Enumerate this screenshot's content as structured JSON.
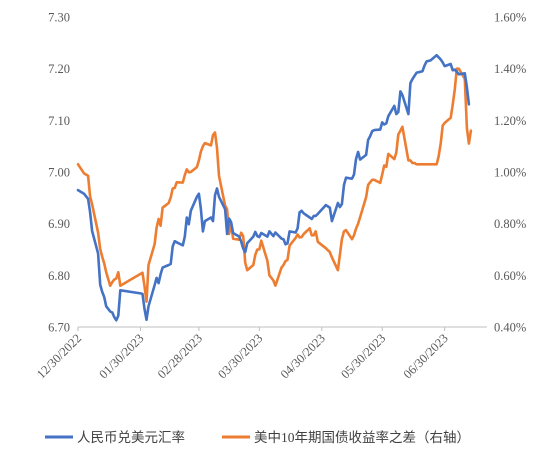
{
  "chart_data": {
    "type": "line",
    "x_axis": {
      "start": "2022-12-30",
      "end": "2023-07-21",
      "tick_labels": [
        "12/30/2022",
        "01/30/2023",
        "02/28/2023",
        "03/30/2023",
        "04/30/2023",
        "05/30/2023",
        "06/30/2023"
      ],
      "tick_dates": [
        "2022-12-30",
        "2023-01-30",
        "2023-02-28",
        "2023-03-30",
        "2023-04-30",
        "2023-05-30",
        "2023-06-30"
      ]
    },
    "y_left": {
      "min": 6.7,
      "max": 7.3,
      "step": 0.1,
      "tick_labels": [
        "7.30",
        "7.20",
        "7.10",
        "7.00",
        "6.90",
        "6.80",
        "6.70"
      ]
    },
    "y_right": {
      "min": 0.4,
      "max": 1.6,
      "step": 0.2,
      "unit": "%",
      "tick_labels": [
        "1.60%",
        "1.40%",
        "1.20%",
        "1.00%",
        "0.80%",
        "0.60%",
        "0.40%"
      ]
    },
    "grid": false,
    "legend_position": "bottom",
    "series": [
      {
        "name": "人民币兑美元汇率",
        "axis": "left",
        "color": "#4472C4",
        "points": [
          [
            "2022-12-30",
            6.965
          ],
          [
            "2023-01-02",
            6.958
          ],
          [
            "2023-01-04",
            6.948
          ],
          [
            "2023-01-05",
            6.922
          ],
          [
            "2023-01-06",
            6.886
          ],
          [
            "2023-01-09",
            6.842
          ],
          [
            "2023-01-10",
            6.782
          ],
          [
            "2023-01-11",
            6.768
          ],
          [
            "2023-01-12",
            6.758
          ],
          [
            "2023-01-13",
            6.74
          ],
          [
            "2023-01-15",
            6.73
          ],
          [
            "2023-01-16",
            6.728
          ],
          [
            "2023-01-17",
            6.719
          ],
          [
            "2023-01-18",
            6.713
          ],
          [
            "2023-01-19",
            6.722
          ],
          [
            "2023-01-20",
            6.771
          ],
          [
            "2023-01-30",
            6.765
          ],
          [
            "2023-01-31",
            6.764
          ],
          [
            "2023-02-01",
            6.735
          ],
          [
            "2023-02-02",
            6.714
          ],
          [
            "2023-02-03",
            6.74
          ],
          [
            "2023-02-06",
            6.781
          ],
          [
            "2023-02-07",
            6.795
          ],
          [
            "2023-02-08",
            6.785
          ],
          [
            "2023-02-09",
            6.802
          ],
          [
            "2023-02-10",
            6.815
          ],
          [
            "2023-02-13",
            6.82
          ],
          [
            "2023-02-14",
            6.822
          ],
          [
            "2023-02-15",
            6.856
          ],
          [
            "2023-02-16",
            6.866
          ],
          [
            "2023-02-17",
            6.864
          ],
          [
            "2023-02-20",
            6.858
          ],
          [
            "2023-02-21",
            6.875
          ],
          [
            "2023-02-22",
            6.912
          ],
          [
            "2023-02-23",
            6.899
          ],
          [
            "2023-02-24",
            6.925
          ],
          [
            "2023-02-27",
            6.952
          ],
          [
            "2023-02-28",
            6.958
          ],
          [
            "2023-03-01",
            6.928
          ],
          [
            "2023-03-02",
            6.885
          ],
          [
            "2023-03-03",
            6.905
          ],
          [
            "2023-03-06",
            6.912
          ],
          [
            "2023-03-07",
            6.905
          ],
          [
            "2023-03-08",
            6.955
          ],
          [
            "2023-03-09",
            6.968
          ],
          [
            "2023-03-10",
            6.952
          ],
          [
            "2023-03-13",
            6.928
          ],
          [
            "2023-03-14",
            6.88
          ],
          [
            "2023-03-15",
            6.91
          ],
          [
            "2023-03-16",
            6.903
          ],
          [
            "2023-03-17",
            6.882
          ],
          [
            "2023-03-20",
            6.875
          ],
          [
            "2023-03-21",
            6.865
          ],
          [
            "2023-03-22",
            6.852
          ],
          [
            "2023-03-23",
            6.845
          ],
          [
            "2023-03-24",
            6.862
          ],
          [
            "2023-03-27",
            6.875
          ],
          [
            "2023-03-28",
            6.884
          ],
          [
            "2023-03-29",
            6.876
          ],
          [
            "2023-03-30",
            6.874
          ],
          [
            "2023-03-31",
            6.882
          ],
          [
            "2023-04-03",
            6.875
          ],
          [
            "2023-04-04",
            6.885
          ],
          [
            "2023-04-06",
            6.876
          ],
          [
            "2023-04-07",
            6.883
          ],
          [
            "2023-04-10",
            6.871
          ],
          [
            "2023-04-11",
            6.87
          ],
          [
            "2023-04-12",
            6.86
          ],
          [
            "2023-04-13",
            6.862
          ],
          [
            "2023-04-14",
            6.885
          ],
          [
            "2023-04-17",
            6.883
          ],
          [
            "2023-04-18",
            6.891
          ],
          [
            "2023-04-19",
            6.922
          ],
          [
            "2023-04-20",
            6.925
          ],
          [
            "2023-04-21",
            6.92
          ],
          [
            "2023-04-24",
            6.912
          ],
          [
            "2023-04-25",
            6.909
          ],
          [
            "2023-04-26",
            6.915
          ],
          [
            "2023-04-27",
            6.915
          ],
          [
            "2023-04-28",
            6.919
          ],
          [
            "2023-05-02",
            6.936
          ],
          [
            "2023-05-04",
            6.931
          ],
          [
            "2023-05-05",
            6.905
          ],
          [
            "2023-05-08",
            6.94
          ],
          [
            "2023-05-09",
            6.932
          ],
          [
            "2023-05-10",
            6.938
          ],
          [
            "2023-05-11",
            6.975
          ],
          [
            "2023-05-12",
            6.989
          ],
          [
            "2023-05-15",
            6.987
          ],
          [
            "2023-05-16",
            6.995
          ],
          [
            "2023-05-17",
            7.025
          ],
          [
            "2023-05-18",
            7.039
          ],
          [
            "2023-05-19",
            7.024
          ],
          [
            "2023-05-22",
            7.033
          ],
          [
            "2023-05-23",
            7.062
          ],
          [
            "2023-05-24",
            7.069
          ],
          [
            "2023-05-25",
            7.079
          ],
          [
            "2023-05-26",
            7.081
          ],
          [
            "2023-05-29",
            7.082
          ],
          [
            "2023-05-30",
            7.096
          ],
          [
            "2023-05-31",
            7.092
          ],
          [
            "2023-06-01",
            7.094
          ],
          [
            "2023-06-02",
            7.108
          ],
          [
            "2023-06-05",
            7.128
          ],
          [
            "2023-06-06",
            7.112
          ],
          [
            "2023-06-07",
            7.116
          ],
          [
            "2023-06-08",
            7.156
          ],
          [
            "2023-06-09",
            7.149
          ],
          [
            "2023-06-12",
            7.112
          ],
          [
            "2023-06-13",
            7.172
          ],
          [
            "2023-06-14",
            7.18
          ],
          [
            "2023-06-15",
            7.186
          ],
          [
            "2023-06-16",
            7.192
          ],
          [
            "2023-06-19",
            7.195
          ],
          [
            "2023-06-20",
            7.206
          ],
          [
            "2023-06-21",
            7.214
          ],
          [
            "2023-06-23",
            7.216
          ],
          [
            "2023-06-26",
            7.226
          ],
          [
            "2023-06-27",
            7.222
          ],
          [
            "2023-06-28",
            7.218
          ],
          [
            "2023-06-29",
            7.212
          ],
          [
            "2023-06-30",
            7.205
          ],
          [
            "2023-07-03",
            7.209
          ],
          [
            "2023-07-04",
            7.197
          ],
          [
            "2023-07-05",
            7.198
          ],
          [
            "2023-07-06",
            7.194
          ],
          [
            "2023-07-07",
            7.189
          ],
          [
            "2023-07-10",
            7.191
          ],
          [
            "2023-07-11",
            7.164
          ],
          [
            "2023-07-12",
            7.131
          ]
        ]
      },
      {
        "name": "美中10年期国债收益率之差（右轴）",
        "axis": "right",
        "color": "#ED7D31",
        "points": [
          [
            "2022-12-30",
            1.03
          ],
          [
            "2023-01-02",
            0.995
          ],
          [
            "2023-01-04",
            0.985
          ],
          [
            "2023-01-05",
            0.905
          ],
          [
            "2023-01-06",
            0.875
          ],
          [
            "2023-01-09",
            0.765
          ],
          [
            "2023-01-10",
            0.702
          ],
          [
            "2023-01-11",
            0.672
          ],
          [
            "2023-01-12",
            0.646
          ],
          [
            "2023-01-13",
            0.612
          ],
          [
            "2023-01-15",
            0.56
          ],
          [
            "2023-01-16",
            0.574
          ],
          [
            "2023-01-17",
            0.584
          ],
          [
            "2023-01-18",
            0.588
          ],
          [
            "2023-01-19",
            0.612
          ],
          [
            "2023-01-20",
            0.56
          ],
          [
            "2023-01-31",
            0.61
          ],
          [
            "2023-02-01",
            0.558
          ],
          [
            "2023-02-02",
            0.498
          ],
          [
            "2023-02-03",
            0.64
          ],
          [
            "2023-02-06",
            0.72
          ],
          [
            "2023-02-07",
            0.785
          ],
          [
            "2023-02-08",
            0.818
          ],
          [
            "2023-02-09",
            0.792
          ],
          [
            "2023-02-10",
            0.862
          ],
          [
            "2023-02-13",
            0.88
          ],
          [
            "2023-02-14",
            0.901
          ],
          [
            "2023-02-15",
            0.936
          ],
          [
            "2023-02-16",
            0.938
          ],
          [
            "2023-02-17",
            0.96
          ],
          [
            "2023-02-20",
            0.959
          ],
          [
            "2023-02-21",
            0.988
          ],
          [
            "2023-02-22",
            1.01
          ],
          [
            "2023-02-23",
            0.999
          ],
          [
            "2023-02-24",
            1.0
          ],
          [
            "2023-02-27",
            1.019
          ],
          [
            "2023-02-28",
            1.045
          ],
          [
            "2023-03-01",
            1.079
          ],
          [
            "2023-03-02",
            1.1
          ],
          [
            "2023-03-03",
            1.112
          ],
          [
            "2023-03-06",
            1.103
          ],
          [
            "2023-03-07",
            1.143
          ],
          [
            "2023-03-08",
            1.153
          ],
          [
            "2023-03-09",
            1.093
          ],
          [
            "2023-03-10",
            0.985
          ],
          [
            "2023-03-13",
            0.87
          ],
          [
            "2023-03-14",
            0.855
          ],
          [
            "2023-03-15",
            0.76
          ],
          [
            "2023-03-16",
            0.8
          ],
          [
            "2023-03-17",
            0.742
          ],
          [
            "2023-03-20",
            0.738
          ],
          [
            "2023-03-21",
            0.765
          ],
          [
            "2023-03-22",
            0.752
          ],
          [
            "2023-03-23",
            0.65
          ],
          [
            "2023-03-24",
            0.62
          ],
          [
            "2023-03-27",
            0.64
          ],
          [
            "2023-03-28",
            0.68
          ],
          [
            "2023-03-29",
            0.7
          ],
          [
            "2023-03-30",
            0.7
          ],
          [
            "2023-03-31",
            0.734
          ],
          [
            "2023-04-03",
            0.656
          ],
          [
            "2023-04-04",
            0.6
          ],
          [
            "2023-04-06",
            0.58
          ],
          [
            "2023-04-07",
            0.56
          ],
          [
            "2023-04-10",
            0.63
          ],
          [
            "2023-04-11",
            0.64
          ],
          [
            "2023-04-12",
            0.655
          ],
          [
            "2023-04-13",
            0.66
          ],
          [
            "2023-04-14",
            0.715
          ],
          [
            "2023-04-17",
            0.745
          ],
          [
            "2023-04-18",
            0.758
          ],
          [
            "2023-04-19",
            0.747
          ],
          [
            "2023-04-20",
            0.748
          ],
          [
            "2023-04-21",
            0.76
          ],
          [
            "2023-04-24",
            0.782
          ],
          [
            "2023-04-25",
            0.755
          ],
          [
            "2023-04-26",
            0.755
          ],
          [
            "2023-04-27",
            0.77
          ],
          [
            "2023-04-28",
            0.73
          ],
          [
            "2023-05-02",
            0.705
          ],
          [
            "2023-05-04",
            0.69
          ],
          [
            "2023-05-05",
            0.67
          ],
          [
            "2023-05-08",
            0.62
          ],
          [
            "2023-05-09",
            0.68
          ],
          [
            "2023-05-10",
            0.74
          ],
          [
            "2023-05-11",
            0.77
          ],
          [
            "2023-05-12",
            0.775
          ],
          [
            "2023-05-15",
            0.74
          ],
          [
            "2023-05-16",
            0.755
          ],
          [
            "2023-05-17",
            0.78
          ],
          [
            "2023-05-18",
            0.8
          ],
          [
            "2023-05-19",
            0.825
          ],
          [
            "2023-05-22",
            0.902
          ],
          [
            "2023-05-23",
            0.95
          ],
          [
            "2023-05-24",
            0.96
          ],
          [
            "2023-05-25",
            0.97
          ],
          [
            "2023-05-26",
            0.97
          ],
          [
            "2023-05-29",
            0.958
          ],
          [
            "2023-05-30",
            0.99
          ],
          [
            "2023-05-31",
            1.025
          ],
          [
            "2023-06-01",
            1.02
          ],
          [
            "2023-06-02",
            1.07
          ],
          [
            "2023-06-05",
            1.05
          ],
          [
            "2023-06-06",
            1.075
          ],
          [
            "2023-06-07",
            1.145
          ],
          [
            "2023-06-08",
            1.16
          ],
          [
            "2023-06-09",
            1.175
          ],
          [
            "2023-06-12",
            1.045
          ],
          [
            "2023-06-13",
            1.045
          ],
          [
            "2023-06-14",
            1.035
          ],
          [
            "2023-06-15",
            1.035
          ],
          [
            "2023-06-16",
            1.03
          ],
          [
            "2023-06-19",
            1.03
          ],
          [
            "2023-06-20",
            1.03
          ],
          [
            "2023-06-21",
            1.03
          ],
          [
            "2023-06-23",
            1.03
          ],
          [
            "2023-06-26",
            1.03
          ],
          [
            "2023-06-27",
            1.06
          ],
          [
            "2023-06-28",
            1.11
          ],
          [
            "2023-06-29",
            1.18
          ],
          [
            "2023-06-30",
            1.19
          ],
          [
            "2023-07-03",
            1.21
          ],
          [
            "2023-07-04",
            1.26
          ],
          [
            "2023-07-05",
            1.32
          ],
          [
            "2023-07-06",
            1.4
          ],
          [
            "2023-07-07",
            1.4
          ],
          [
            "2023-07-10",
            1.36
          ],
          [
            "2023-07-11",
            1.17
          ],
          [
            "2023-07-12",
            1.11
          ],
          [
            "2023-07-13",
            1.16
          ]
        ]
      }
    ]
  }
}
